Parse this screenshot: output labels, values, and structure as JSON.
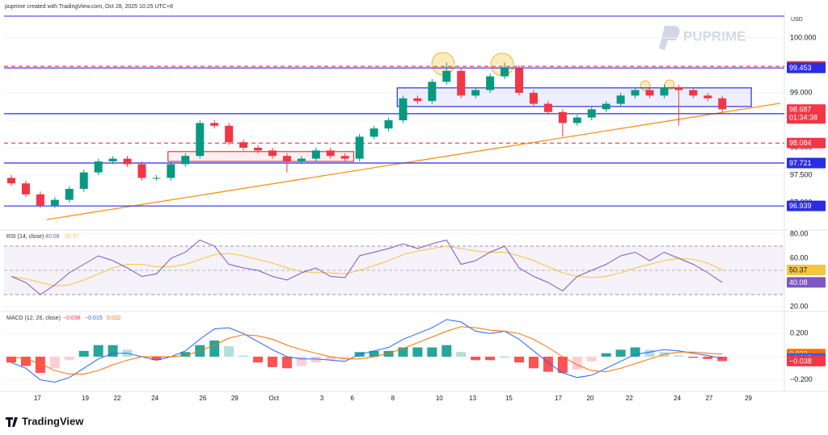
{
  "header": {
    "attribution": "puprime created with TradingView.com, Oct 28, 2025 10:25 UTC+8",
    "currency": "USD",
    "watermark": "PUPRIME",
    "brand": "TradingView"
  },
  "chart_data": [
    {
      "type": "candlestick",
      "up_color": "#089981",
      "down_color": "#f23645",
      "open": [
        97.45,
        97.35,
        97.15,
        96.95,
        97.05,
        97.25,
        97.55,
        97.75,
        97.8,
        97.7,
        97.45,
        97.45,
        97.7,
        97.85,
        98.45,
        98.4,
        98.1,
        98.0,
        97.95,
        97.85,
        97.75,
        97.8,
        97.95,
        97.85,
        97.8,
        98.2,
        98.35,
        98.5,
        98.9,
        98.85,
        99.2,
        99.4,
        98.95,
        99.05,
        99.3,
        99.45,
        99.0,
        98.8,
        98.65,
        98.45,
        98.55,
        98.7,
        98.8,
        98.95,
        99.05,
        98.95,
        99.1,
        99.05,
        98.95,
        98.9
      ],
      "high": [
        97.5,
        97.4,
        97.2,
        97.1,
        97.3,
        97.6,
        97.8,
        97.85,
        97.85,
        97.75,
        97.5,
        97.75,
        97.9,
        98.5,
        98.5,
        98.45,
        98.15,
        98.05,
        98.0,
        97.9,
        97.85,
        98.0,
        98.0,
        97.9,
        98.25,
        98.4,
        98.55,
        98.95,
        98.95,
        99.25,
        99.55,
        99.45,
        99.1,
        99.35,
        99.55,
        99.5,
        99.05,
        98.85,
        98.7,
        98.6,
        98.75,
        98.85,
        99.0,
        99.1,
        99.1,
        99.15,
        99.15,
        99.1,
        99.0,
        98.95
      ],
      "low": [
        97.3,
        97.1,
        96.9,
        96.9,
        97.0,
        97.2,
        97.5,
        97.7,
        97.65,
        97.4,
        97.4,
        97.4,
        97.65,
        97.8,
        98.35,
        98.05,
        97.95,
        97.9,
        97.8,
        97.55,
        97.7,
        97.75,
        97.8,
        97.75,
        97.75,
        98.15,
        98.3,
        98.45,
        98.8,
        98.8,
        99.15,
        98.9,
        98.9,
        99.0,
        99.25,
        98.95,
        98.75,
        98.6,
        98.2,
        98.4,
        98.5,
        98.65,
        98.75,
        98.9,
        98.9,
        98.9,
        98.4,
        98.9,
        98.85,
        98.65
      ],
      "close": [
        97.35,
        97.15,
        96.95,
        97.05,
        97.25,
        97.55,
        97.75,
        97.8,
        97.7,
        97.45,
        97.45,
        97.7,
        97.85,
        98.45,
        98.4,
        98.1,
        98.0,
        97.95,
        97.85,
        97.75,
        97.8,
        97.95,
        97.85,
        97.8,
        98.2,
        98.35,
        98.5,
        98.9,
        98.85,
        99.2,
        99.4,
        98.95,
        99.05,
        99.3,
        99.45,
        99.0,
        98.8,
        98.65,
        98.45,
        98.55,
        98.7,
        98.8,
        98.95,
        99.05,
        98.95,
        99.1,
        99.05,
        98.95,
        98.9,
        98.7
      ],
      "xlim": [
        -0.5,
        53
      ],
      "xticks": [
        {
          "value": 1.8,
          "label": "17"
        },
        {
          "value": 5.1,
          "label": "19"
        },
        {
          "value": 7.3,
          "label": "22"
        },
        {
          "value": 9.9,
          "label": "24"
        },
        {
          "value": 13.2,
          "label": "26"
        },
        {
          "value": 15.4,
          "label": "29"
        },
        {
          "value": 18.1,
          "label": "Oct"
        },
        {
          "value": 21.4,
          "label": "3"
        },
        {
          "value": 23.5,
          "label": "6"
        },
        {
          "value": 26.3,
          "label": "8"
        },
        {
          "value": 29.5,
          "label": "10"
        },
        {
          "value": 31.8,
          "label": "13"
        },
        {
          "value": 34.3,
          "label": "15"
        },
        {
          "value": 37.7,
          "label": "17"
        },
        {
          "value": 39.9,
          "label": "20"
        },
        {
          "value": 42.6,
          "label": "22"
        },
        {
          "value": 45.9,
          "label": "24"
        },
        {
          "value": 48.1,
          "label": "27"
        },
        {
          "value": 50.8,
          "label": "29"
        }
      ],
      "ylim": [
        96.53,
        100.47
      ],
      "yticks": [
        {
          "value": 100,
          "label": "100.000"
        },
        {
          "value": 99.5,
          "label": "99.500"
        },
        {
          "value": 99,
          "label": "99.000"
        },
        {
          "value": 98.5,
          "label": "98.500"
        },
        {
          "value": 98,
          "label": "98.000"
        },
        {
          "value": 97.5,
          "label": "97.500"
        },
        {
          "value": 97,
          "label": "97.000"
        }
      ],
      "levels": [
        {
          "value": 99.482,
          "color": "#f23645",
          "dashed": true
        },
        {
          "value": 99.453,
          "color": "#2a2ee0",
          "dashed": false
        },
        {
          "value": 98.619,
          "color": "#2a2ee0",
          "dashed": false
        },
        {
          "value": 98.084,
          "color": "#f23645",
          "dashed": true
        },
        {
          "value": 97.721,
          "color": "#2a2ee0",
          "dashed": false
        },
        {
          "value": 96.939,
          "color": "#2a2ee0",
          "dashed": false
        }
      ],
      "last_price": 98.687,
      "countdown": "01:34:38",
      "trendline": {
        "x": [
          2.44,
          53
        ],
        "y": [
          96.69,
          98.81
        ],
        "color": "#f7931a"
      },
      "zones": [
        {
          "x": [
            10.8,
            23.6
          ],
          "y": [
            97.75,
            97.93
          ],
          "color": "#f23645"
        },
        {
          "x": [
            26.6,
            51
          ],
          "y": [
            98.75,
            99.09
          ],
          "color": "#2a2ee0"
        }
      ]
    },
    {
      "type": "rsi",
      "title": "RSI (14, close)",
      "ylim": [
        16.7,
        83.3
      ],
      "bands": [
        30,
        70
      ],
      "midline": 50,
      "yticks": [
        {
          "value": 80,
          "label": "80.00"
        },
        {
          "value": 60,
          "label": "60.00"
        },
        {
          "value": 40,
          "label": "40.00"
        },
        {
          "value": 20,
          "label": "20.00"
        }
      ],
      "series": [
        {
          "name": "RSI",
          "color": "#7e57c2",
          "values": [
            45,
            40,
            30,
            38,
            48,
            55,
            62,
            58,
            52,
            45,
            47,
            60,
            65,
            75,
            70,
            55,
            52,
            50,
            45,
            42,
            48,
            52,
            45,
            44,
            62,
            65,
            68,
            72,
            68,
            72,
            75,
            55,
            58,
            65,
            70,
            52,
            45,
            40,
            33,
            45,
            50,
            55,
            62,
            65,
            58,
            65,
            60,
            55,
            48,
            40.08
          ]
        },
        {
          "name": "RSI-based MA",
          "color": "#f5c542",
          "values": [
            45,
            43,
            40,
            37,
            38,
            42,
            47,
            52,
            55,
            55,
            53,
            53,
            55,
            59,
            63,
            64,
            62,
            59,
            56,
            52,
            49,
            48,
            48,
            47,
            50,
            54,
            58,
            63,
            66,
            68,
            70,
            68,
            66,
            65,
            65,
            62,
            58,
            53,
            48,
            45,
            44,
            45,
            48,
            52,
            55,
            58,
            60,
            59,
            56,
            50.37
          ]
        }
      ]
    },
    {
      "type": "macd",
      "title": "MACD (12, 26, close)",
      "ylim": [
        -0.3,
        0.39
      ],
      "yticks": [
        {
          "value": 0.2,
          "label": "0.200"
        },
        {
          "value": 0,
          "label": "0.000"
        },
        {
          "value": -0.2,
          "label": "−0.200"
        }
      ],
      "histogram": [
        -0.05,
        -0.08,
        -0.14,
        -0.1,
        -0.03,
        0.05,
        0.1,
        0.1,
        0.06,
        0,
        -0.03,
        0,
        0.04,
        0.1,
        0.14,
        0.09,
        0.01,
        -0.05,
        -0.09,
        -0.1,
        -0.08,
        -0.05,
        -0.03,
        -0.02,
        0.04,
        0.05,
        0.05,
        0.08,
        0.08,
        0.08,
        0.1,
        0.04,
        -0.03,
        -0.03,
        0,
        -0.05,
        -0.1,
        -0.13,
        -0.14,
        -0.11,
        -0.04,
        0.03,
        0.06,
        0.08,
        0.06,
        0.04,
        0.01,
        -0.01,
        -0.02,
        -0.038
      ],
      "series": [
        {
          "name": "MACD",
          "color": "#2962ff",
          "values": [
            -0.05,
            -0.1,
            -0.2,
            -0.22,
            -0.18,
            -0.1,
            -0.02,
            0.03,
            0.03,
            0,
            -0.03,
            0,
            0.05,
            0.15,
            0.24,
            0.25,
            0.2,
            0.13,
            0.06,
            0,
            -0.02,
            -0.02,
            -0.03,
            -0.04,
            0.02,
            0.05,
            0.08,
            0.15,
            0.2,
            0.25,
            0.32,
            0.3,
            0.22,
            0.2,
            0.22,
            0.15,
            0.05,
            -0.05,
            -0.14,
            -0.18,
            -0.16,
            -0.1,
            -0.04,
            0.02,
            0.04,
            0.06,
            0.05,
            0.03,
            0.01,
            -0.015
          ]
        },
        {
          "name": "Signal",
          "color": "#ff6d00",
          "values": [
            0,
            -0.02,
            -0.06,
            -0.12,
            -0.15,
            -0.15,
            -0.12,
            -0.07,
            -0.03,
            0,
            0,
            0,
            0.01,
            0.05,
            0.1,
            0.16,
            0.19,
            0.18,
            0.15,
            0.1,
            0.06,
            0.03,
            0,
            -0.02,
            -0.02,
            0,
            0.03,
            0.07,
            0.12,
            0.17,
            0.22,
            0.26,
            0.25,
            0.23,
            0.22,
            0.2,
            0.15,
            0.08,
            0,
            -0.07,
            -0.12,
            -0.13,
            -0.1,
            -0.06,
            -0.02,
            0.02,
            0.04,
            0.04,
            0.03,
            0.022
          ]
        }
      ],
      "legend_values": [
        {
          "value": -0.038,
          "label": "−0.038",
          "color": "#f23645"
        },
        {
          "value": -0.015,
          "label": "−0.015",
          "color": "#2962ff"
        },
        {
          "value": 0.022,
          "label": "0.022",
          "color": "#ff6d00"
        }
      ]
    }
  ]
}
